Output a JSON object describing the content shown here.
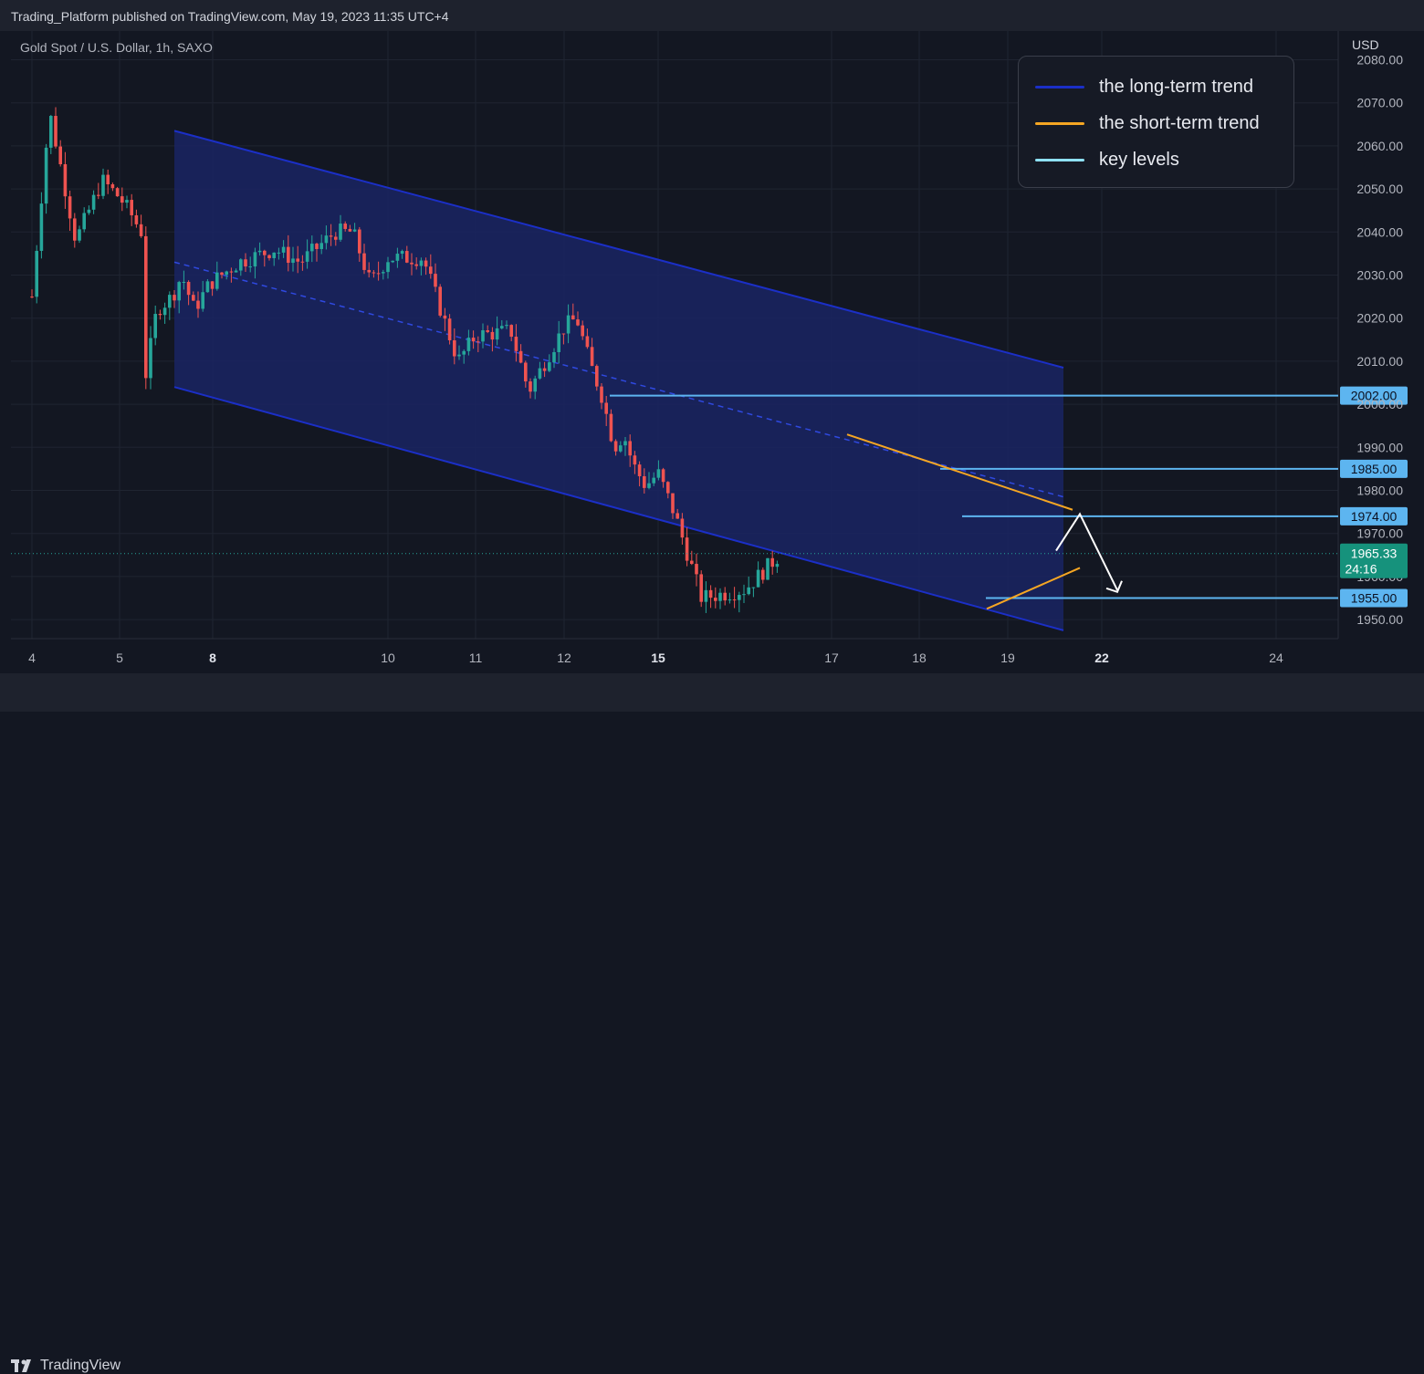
{
  "header": {
    "published": "Trading_Platform published on TradingView.com, May 19, 2023 11:35 UTC+4"
  },
  "symbol": "Gold Spot / U.S. Dollar, 1h, SAXO",
  "axis_unit": "USD",
  "footer": {
    "brand": "TradingView"
  },
  "legend": [
    {
      "label": "the long-term trend",
      "color": "#1b2fc7"
    },
    {
      "label": "the short-term trend",
      "color": "#f5a623"
    },
    {
      "label": "key levels",
      "color": "#8ee1f5"
    }
  ],
  "colors": {
    "up": "#26a69a",
    "down": "#ef5350",
    "channel_fill": "#1a2463",
    "channel_line": "#1b2fc7",
    "level": "#5db5f0",
    "short_trend": "#f5a623",
    "arrow": "#ffffff"
  },
  "chart_data": {
    "type": "candlestick",
    "ylim": [
      1945,
      2083
    ],
    "y_ticks": [
      "1950.00",
      "1960.00",
      "1970.00",
      "1980.00",
      "1990.00",
      "2000.00",
      "2010.00",
      "2020.00",
      "2030.00",
      "2040.00",
      "2050.00",
      "2060.00",
      "2070.00",
      "2080.00"
    ],
    "x_ticks": [
      {
        "label": "4",
        "bold": false
      },
      {
        "label": "5",
        "bold": false
      },
      {
        "label": "8",
        "bold": true
      },
      {
        "label": "10",
        "bold": false
      },
      {
        "label": "11",
        "bold": false
      },
      {
        "label": "12",
        "bold": false
      },
      {
        "label": "15",
        "bold": true
      },
      {
        "label": "17",
        "bold": false
      },
      {
        "label": "18",
        "bold": false
      },
      {
        "label": "19",
        "bold": false
      },
      {
        "label": "22",
        "bold": true
      },
      {
        "label": "24",
        "bold": false
      }
    ],
    "price_path": [
      [
        "4",
        2025
      ],
      [
        "4.2",
        2068
      ],
      [
        "4.5",
        2038
      ],
      [
        "4.8",
        2052
      ],
      [
        "5",
        2048
      ],
      [
        "5.3",
        2045
      ],
      [
        "5.7",
        2040
      ],
      [
        "5.8",
        2005
      ],
      [
        "6.2",
        2022
      ],
      [
        "6.7",
        2025
      ],
      [
        "7",
        2030
      ],
      [
        "7.4",
        2022
      ],
      [
        "7.9",
        2028
      ],
      [
        "8.3",
        2033
      ],
      [
        "8.7",
        2036
      ],
      [
        "9",
        2033
      ],
      [
        "9.4",
        2040
      ],
      [
        "9.6",
        2040
      ],
      [
        "9.8",
        2028
      ],
      [
        "10",
        2034
      ],
      [
        "10.4",
        2034
      ],
      [
        "10.8",
        2010
      ],
      [
        "11",
        2016
      ],
      [
        "11.4",
        2017
      ],
      [
        "11.6",
        2003
      ],
      [
        "12",
        2018
      ],
      [
        "12.4",
        2020
      ],
      [
        "12.8",
        2010
      ],
      [
        "13.2",
        2002
      ],
      [
        "13.6",
        1990
      ],
      [
        "13.9",
        1993
      ],
      [
        "14.2",
        1986
      ],
      [
        "14.6",
        1981
      ],
      [
        "15",
        1984
      ],
      [
        "15.2",
        1974
      ],
      [
        "15.5",
        1955
      ],
      [
        "16",
        1957
      ],
      [
        "16.4",
        1965
      ]
    ],
    "current_price": "1965.33",
    "countdown": "24:16",
    "key_levels": [
      {
        "label": "2002.00",
        "value": 2002
      },
      {
        "label": "1985.00",
        "value": 1985
      },
      {
        "label": "1974.00",
        "value": 1974
      },
      {
        "label": "1955.00",
        "value": 1955
      }
    ],
    "channel": {
      "upper": [
        [
          2063.5,
          2008.5
        ]
      ],
      "lower": [
        [
          2004,
          1947.5
        ]
      ],
      "mid": [
        [
          2033,
          1978.5
        ]
      ]
    },
    "short_trend_upper": [
      1993,
      1975.5
    ],
    "short_trend_lower": [
      1952.5,
      1962
    ],
    "projection": [
      1966,
      1974.5,
      1956
    ]
  }
}
